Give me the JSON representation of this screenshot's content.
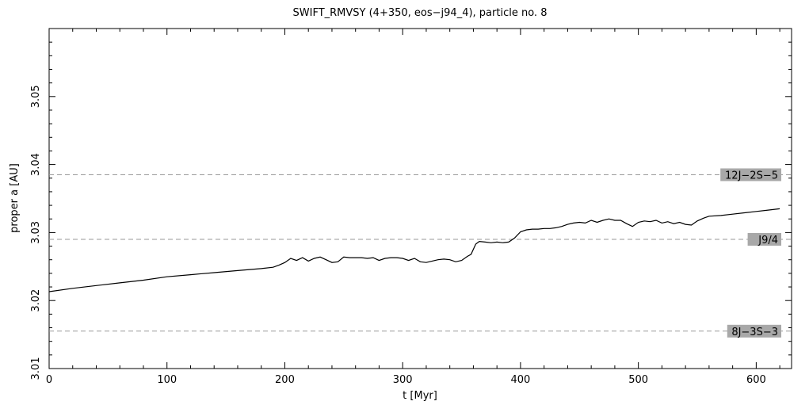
{
  "chart_data": {
    "type": "line",
    "title": "SWIFT_RMVSY (4+350, eos−j94_4), particle no. 8",
    "xlabel": "t [Myr]",
    "ylabel": "proper a [AU]",
    "xlim": [
      0,
      630
    ],
    "ylim": [
      3.01,
      3.06
    ],
    "x_ticks": [
      0,
      100,
      200,
      300,
      400,
      500,
      600
    ],
    "y_ticks": [
      3.01,
      3.02,
      3.03,
      3.04,
      3.05
    ],
    "x_tick_labels": [
      "0",
      "100",
      "200",
      "300",
      "400",
      "500",
      "600"
    ],
    "y_tick_labels": [
      "3.01",
      "3.02",
      "3.03",
      "3.04",
      "3.05"
    ],
    "grid": false,
    "resonances": [
      {
        "label": "12J−2S−5",
        "a": 3.0385
      },
      {
        "label": "J9/4",
        "a": 3.029
      },
      {
        "label": "8J−3S−3",
        "a": 3.0155
      }
    ],
    "series": [
      {
        "x": [
          0,
          20,
          40,
          60,
          80,
          100,
          120,
          140,
          160,
          180,
          190,
          195,
          200,
          205,
          210,
          215,
          220,
          225,
          230,
          235,
          240,
          245,
          250,
          255,
          260,
          265,
          270,
          275,
          280,
          285,
          290,
          295,
          300,
          305,
          310,
          315,
          320,
          325,
          330,
          335,
          340,
          345,
          350,
          355,
          358,
          362,
          365,
          370,
          375,
          380,
          385,
          390,
          395,
          400,
          405,
          410,
          415,
          420,
          425,
          430,
          435,
          440,
          445,
          450,
          455,
          460,
          465,
          470,
          475,
          480,
          485,
          490,
          495,
          500,
          505,
          510,
          515,
          520,
          525,
          530,
          535,
          540,
          545,
          550,
          555,
          560,
          570,
          580,
          590,
          600,
          610,
          620
        ],
        "y": [
          3.0213,
          3.0218,
          3.0222,
          3.0226,
          3.023,
          3.0235,
          3.0238,
          3.0241,
          3.0244,
          3.0247,
          3.0249,
          3.0252,
          3.0256,
          3.0262,
          3.0259,
          3.0263,
          3.0258,
          3.0262,
          3.0264,
          3.026,
          3.0256,
          3.0257,
          3.0264,
          3.0263,
          3.0263,
          3.0263,
          3.0262,
          3.0263,
          3.0259,
          3.0262,
          3.0263,
          3.0263,
          3.0262,
          3.0259,
          3.0262,
          3.0257,
          3.0256,
          3.0258,
          3.026,
          3.0261,
          3.026,
          3.0257,
          3.0259,
          3.0265,
          3.0268,
          3.0283,
          3.0287,
          3.0286,
          3.0285,
          3.0286,
          3.0285,
          3.0286,
          3.0292,
          3.0301,
          3.0304,
          3.0305,
          3.0305,
          3.0306,
          3.0306,
          3.0307,
          3.0309,
          3.0312,
          3.0314,
          3.0315,
          3.0314,
          3.0318,
          3.0315,
          3.0318,
          3.032,
          3.0318,
          3.0318,
          3.0313,
          3.0309,
          3.0315,
          3.0317,
          3.0316,
          3.0318,
          3.0314,
          3.0316,
          3.0313,
          3.0315,
          3.0312,
          3.0311,
          3.0317,
          3.0321,
          3.0324,
          3.0325,
          3.0327,
          3.0329,
          3.0331,
          3.0333,
          3.0335
        ]
      }
    ]
  }
}
